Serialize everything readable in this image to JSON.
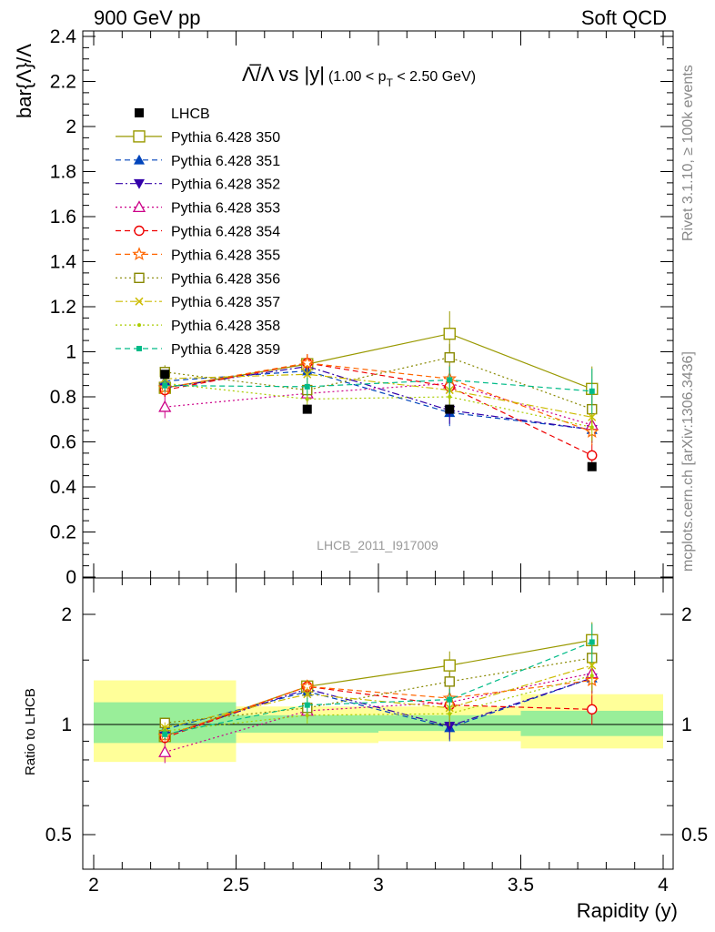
{
  "header": {
    "left": "900 GeV pp",
    "right": "Soft QCD",
    "rivet": "Rivet 3.1.10, ≥ 100k events",
    "mcplots": "mcplots.cern.ch [arXiv:1306.3436]",
    "analysis": "LHCB_2011_I917009"
  },
  "chart_data": [
    {
      "panel": "main",
      "type": "scatter",
      "title_main": "Λ̅/Λ vs |y|",
      "title_cut": "(1.00 < p",
      "title_cut_sub": "T",
      "title_cut_end": " < 2.50 GeV)",
      "xlabel": "Rapidity (y)",
      "ylabel": "bar{Λ}/Λ",
      "xlim": [
        2,
        4
      ],
      "ylim": [
        0,
        2.4
      ],
      "y_ticks": [
        "0",
        "0.2",
        "0.4",
        "0.6",
        "0.8",
        "1",
        "1.2",
        "1.4",
        "1.6",
        "1.8",
        "2",
        "2.2",
        "2.4"
      ],
      "x": [
        2.25,
        2.75,
        3.25,
        3.75
      ],
      "data": {
        "name": "LHCB",
        "values": [
          0.9,
          0.745,
          0.745,
          0.49
        ],
        "color": "#000000"
      },
      "series": [
        {
          "name": "Pythia 6.428 350",
          "color": "#999900",
          "marker": "open-square",
          "dash": "solid",
          "values": [
            0.84,
            0.945,
            1.08,
            0.835
          ],
          "errors": [
            0.04,
            0.04,
            0.1,
            0.1
          ]
        },
        {
          "name": "Pythia 6.428 351",
          "color": "#0044bb",
          "marker": "filled-triangle-up",
          "dash": "dashed",
          "values": [
            0.87,
            0.915,
            0.73,
            0.655
          ],
          "errors": [
            0.03,
            0.04,
            0.06,
            0.06
          ]
        },
        {
          "name": "Pythia 6.428 352",
          "color": "#3300aa",
          "marker": "filled-triangle-down",
          "dash": "dashdot",
          "values": [
            0.84,
            0.935,
            0.74,
            0.655
          ],
          "errors": [
            0.03,
            0.04,
            0.06,
            0.06
          ]
        },
        {
          "name": "Pythia 6.428 353",
          "color": "#cc0088",
          "marker": "open-triangle-up",
          "dash": "dotted",
          "values": [
            0.755,
            0.815,
            0.86,
            0.675
          ],
          "errors": [
            0.05,
            0.04,
            0.06,
            0.06
          ]
        },
        {
          "name": "Pythia 6.428 354",
          "color": "#ee0000",
          "marker": "open-circle",
          "dash": "dashed",
          "values": [
            0.83,
            0.95,
            0.845,
            0.54
          ],
          "errors": [
            0.03,
            0.04,
            0.06,
            0.05
          ]
        },
        {
          "name": "Pythia 6.428 355",
          "color": "#ff6600",
          "marker": "open-star",
          "dash": "dashed",
          "values": [
            0.84,
            0.95,
            0.88,
            0.645
          ],
          "errors": [
            0.03,
            0.04,
            0.06,
            0.06
          ]
        },
        {
          "name": "Pythia 6.428 356",
          "color": "#888800",
          "marker": "open-square-small",
          "dash": "dotted",
          "values": [
            0.91,
            0.83,
            0.975,
            0.745
          ],
          "errors": [
            0.03,
            0.04,
            0.06,
            0.06
          ]
        },
        {
          "name": "Pythia 6.428 357",
          "color": "#ccbb00",
          "marker": "cross",
          "dash": "dashdot",
          "values": [
            0.88,
            0.9,
            0.83,
            0.71
          ],
          "errors": [
            0.03,
            0.04,
            0.06,
            0.06
          ]
        },
        {
          "name": "Pythia 6.428 358",
          "color": "#aacc00",
          "marker": "dot",
          "dash": "dotted",
          "values": [
            0.86,
            0.79,
            0.8,
            0.665
          ],
          "errors": [
            0.03,
            0.04,
            0.06,
            0.06
          ]
        },
        {
          "name": "Pythia 6.428 359",
          "color": "#00bb88",
          "marker": "filled-square-small",
          "dash": "dashed",
          "values": [
            0.85,
            0.845,
            0.875,
            0.825
          ],
          "errors": [
            0.03,
            0.04,
            0.06,
            0.1
          ]
        }
      ]
    },
    {
      "panel": "ratio",
      "type": "scatter",
      "ylabel": "Ratio to LHCB",
      "xlabel": "Rapidity (y)",
      "xlim": [
        2,
        4
      ],
      "ylim": [
        0.4,
        2.4
      ],
      "log_y": true,
      "y_ticks": [
        "0.5",
        "1",
        "2"
      ],
      "x_ticks": [
        "2",
        "2.5",
        "3",
        "3.5",
        "4"
      ],
      "x": [
        2.25,
        2.75,
        3.25,
        3.75
      ],
      "bands": [
        {
          "xlo": 2.0,
          "xhi": 2.5,
          "inner": [
            0.89,
            1.15
          ],
          "outer": [
            0.79,
            1.32
          ]
        },
        {
          "xlo": 2.5,
          "xhi": 3.0,
          "inner": [
            0.95,
            1.06
          ],
          "outer": [
            0.89,
            1.12
          ]
        },
        {
          "xlo": 3.0,
          "xhi": 3.5,
          "inner": [
            0.96,
            1.06
          ],
          "outer": [
            0.9,
            1.12
          ]
        },
        {
          "xlo": 3.5,
          "xhi": 4.0,
          "inner": [
            0.93,
            1.09
          ],
          "outer": [
            0.86,
            1.21
          ]
        }
      ],
      "series": [
        {
          "name": "Pythia 6.428 350",
          "values": [
            0.93,
            1.27,
            1.45,
            1.7
          ]
        },
        {
          "name": "Pythia 6.428 351",
          "values": [
            0.97,
            1.23,
            0.98,
            1.34
          ]
        },
        {
          "name": "Pythia 6.428 352",
          "values": [
            0.93,
            1.25,
            0.99,
            1.34
          ]
        },
        {
          "name": "Pythia 6.428 353",
          "values": [
            0.84,
            1.09,
            1.15,
            1.38
          ]
        },
        {
          "name": "Pythia 6.428 354",
          "values": [
            0.92,
            1.27,
            1.13,
            1.1
          ]
        },
        {
          "name": "Pythia 6.428 355",
          "values": [
            0.93,
            1.27,
            1.18,
            1.32
          ]
        },
        {
          "name": "Pythia 6.428 356",
          "values": [
            1.01,
            1.11,
            1.31,
            1.52
          ]
        },
        {
          "name": "Pythia 6.428 357",
          "values": [
            0.98,
            1.21,
            1.11,
            1.45
          ]
        },
        {
          "name": "Pythia 6.428 358",
          "values": [
            0.96,
            1.06,
            1.07,
            1.36
          ]
        },
        {
          "name": "Pythia 6.428 359",
          "values": [
            0.94,
            1.13,
            1.17,
            1.68
          ]
        }
      ]
    }
  ]
}
